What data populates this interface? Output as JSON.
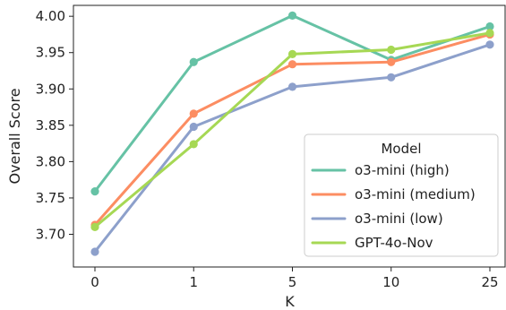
{
  "chart_data": {
    "type": "line",
    "xlabel": "K",
    "ylabel": "Overall Score",
    "categories": [
      "0",
      "1",
      "5",
      "10",
      "25"
    ],
    "ylim": [
      3.655,
      4.015
    ],
    "yticks": [
      "3.70",
      "3.75",
      "3.80",
      "3.85",
      "3.90",
      "3.95",
      "4.00"
    ],
    "grid": false,
    "legend": {
      "title": "Model",
      "placement": "bottom-right"
    },
    "series": [
      {
        "name": "o3-mini (high)",
        "color": "#66c2a5",
        "values": [
          3.759,
          3.937,
          4.001,
          3.94,
          3.986
        ]
      },
      {
        "name": "o3-mini (medium)",
        "color": "#fc8d62",
        "values": [
          3.713,
          3.866,
          3.934,
          3.937,
          3.975
        ]
      },
      {
        "name": "o3-mini (low)",
        "color": "#8da0cb",
        "values": [
          3.676,
          3.848,
          3.903,
          3.916,
          3.961
        ]
      },
      {
        "name": "GPT-4o-Nov",
        "color": "#a6d854",
        "values": [
          3.71,
          3.824,
          3.948,
          3.954,
          3.977
        ]
      }
    ]
  }
}
